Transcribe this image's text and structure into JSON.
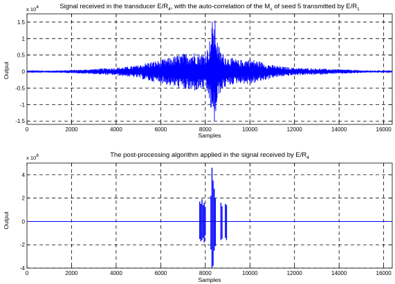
{
  "chart_data": [
    {
      "type": "line",
      "title_pre": "Signal received in the transducer E/R",
      "title_sub1": "4",
      "title_mid": ", with the auto-correlation of the M",
      "title_sub2": "s",
      "title_post": " of seed 5 transmitted by E/R",
      "title_sub3": "1",
      "xlabel": "Samples",
      "ylabel": "Output",
      "exponent_base": "x 10",
      "exponent_power": "4",
      "xlim": [
        0,
        16384
      ],
      "ylim": [
        -1.6,
        1.75
      ],
      "xticks": [
        0,
        2000,
        4000,
        6000,
        8000,
        10000,
        12000,
        14000,
        16000
      ],
      "yticks": [
        -1.5,
        -1,
        -0.5,
        0,
        0.5,
        1,
        1.5
      ],
      "ytick_labels": [
        "-1.5",
        "-1",
        "-0.5",
        "0",
        "0.5",
        "1",
        "1.5"
      ],
      "grid": true,
      "line_color": "#0000ff",
      "envelope": [
        [
          0,
          0.01
        ],
        [
          500,
          0.02
        ],
        [
          1000,
          0.03
        ],
        [
          1500,
          0.04
        ],
        [
          2000,
          0.05
        ],
        [
          2500,
          0.06
        ],
        [
          3000,
          0.08
        ],
        [
          3500,
          0.1
        ],
        [
          4000,
          0.12
        ],
        [
          4500,
          0.15
        ],
        [
          5000,
          0.2
        ],
        [
          5500,
          0.3
        ],
        [
          6000,
          0.35
        ],
        [
          6500,
          0.45
        ],
        [
          7000,
          0.55
        ],
        [
          7300,
          0.6
        ],
        [
          7500,
          0.6
        ],
        [
          7800,
          0.55
        ],
        [
          8000,
          0.6
        ],
        [
          8150,
          0.8
        ],
        [
          8250,
          1.2
        ],
        [
          8300,
          1.5
        ],
        [
          8350,
          1.7
        ],
        [
          8450,
          1.55
        ],
        [
          8550,
          0.9
        ],
        [
          8700,
          0.6
        ],
        [
          9000,
          0.45
        ],
        [
          9500,
          0.35
        ],
        [
          10000,
          0.4
        ],
        [
          10500,
          0.3
        ],
        [
          11000,
          0.2
        ],
        [
          11500,
          0.15
        ],
        [
          12000,
          0.12
        ],
        [
          12500,
          0.1
        ],
        [
          13000,
          0.1
        ],
        [
          13500,
          0.08
        ],
        [
          14000,
          0.07
        ],
        [
          14500,
          0.06
        ],
        [
          15000,
          0.04
        ],
        [
          15500,
          0.03
        ],
        [
          16000,
          0.02
        ],
        [
          16384,
          0.01
        ]
      ]
    },
    {
      "type": "line",
      "title_pre": "The post-processing algorithm applied in the signal received by E/R",
      "title_sub1": "4",
      "xlabel": "Samples",
      "ylabel": "Output",
      "exponent_base": "x 10",
      "exponent_power": "8",
      "xlim": [
        0,
        16384
      ],
      "ylim": [
        -4,
        5
      ],
      "xticks": [
        0,
        2000,
        4000,
        6000,
        8000,
        10000,
        12000,
        14000,
        16000
      ],
      "yticks": [
        -4,
        -2,
        0,
        2,
        4
      ],
      "ytick_labels": [
        "-4",
        "-2",
        "0",
        "2",
        "4"
      ],
      "grid": true,
      "line_color": "#0000ff",
      "spikes": [
        {
          "x": 7750,
          "top": 1.7,
          "bottom": -1.5
        },
        {
          "x": 7800,
          "top": 1.5,
          "bottom": -1.7
        },
        {
          "x": 7850,
          "top": 1.9,
          "bottom": -1.6
        },
        {
          "x": 7900,
          "top": 1.4,
          "bottom": -1.4
        },
        {
          "x": 7950,
          "top": 1.6,
          "bottom": -1.8
        },
        {
          "x": 8000,
          "top": 1.2,
          "bottom": -1.2
        },
        {
          "x": 8250,
          "top": 2.2,
          "bottom": -2.4
        },
        {
          "x": 8300,
          "top": 4.6,
          "bottom": -4.0
        },
        {
          "x": 8350,
          "top": 3.5,
          "bottom": -3.8
        },
        {
          "x": 8400,
          "top": 2.8,
          "bottom": -2.5
        },
        {
          "x": 8450,
          "top": 2.0,
          "bottom": -2.1
        },
        {
          "x": 8700,
          "top": 1.6,
          "bottom": -1.6
        },
        {
          "x": 8750,
          "top": 1.3,
          "bottom": -1.5
        },
        {
          "x": 8900,
          "top": 1.5,
          "bottom": -1.4
        },
        {
          "x": 8950,
          "top": 1.4,
          "bottom": -1.6
        }
      ]
    }
  ]
}
